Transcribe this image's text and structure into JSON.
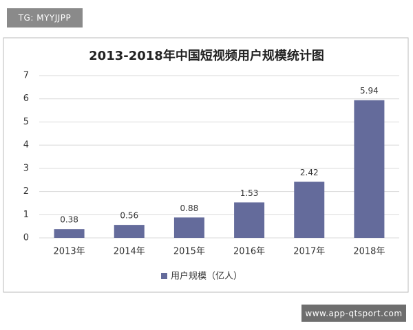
{
  "watermarks": [
    "TG: MYYJJPP",
    "www.app-qtsport.com"
  ],
  "chart_data": {
    "type": "bar",
    "title": "2013-2018年中国短视频用户规模统计图",
    "categories": [
      "2013年",
      "2014年",
      "2015年",
      "2016年",
      "2017年",
      "2018年"
    ],
    "series": [
      {
        "name": "用户规模（亿人）",
        "color": "#646b9b",
        "values": [
          0.38,
          0.56,
          0.88,
          1.53,
          2.42,
          5.94
        ]
      }
    ],
    "ylim": [
      0,
      7
    ],
    "yticks": [
      0,
      1,
      2,
      3,
      4,
      5,
      6,
      7
    ],
    "grid": true,
    "legend": "bottom"
  }
}
